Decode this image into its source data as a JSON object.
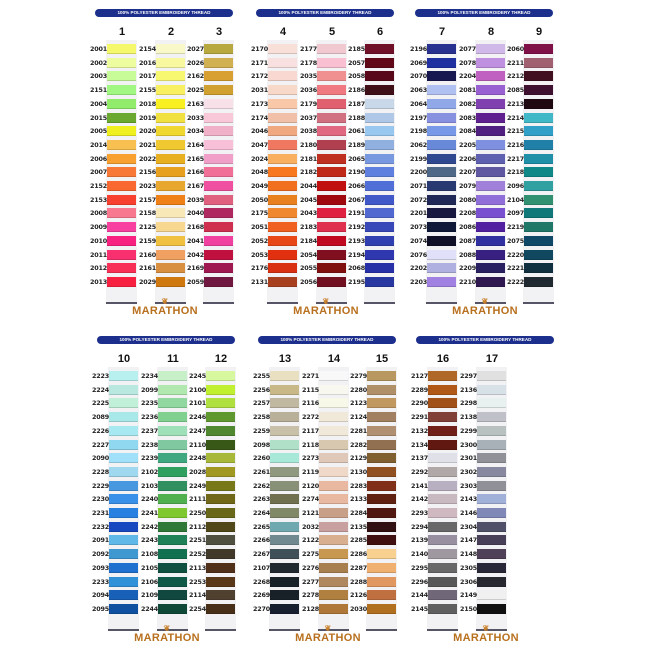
{
  "banner_text": "100% POLYESTER EMBROIDERY THREAD",
  "brand": "MARATHON",
  "cards": [
    {
      "columns": [
        {
          "number": "1",
          "codes": [
            "2001",
            "2002",
            "2003",
            "2151",
            "2004",
            "2015",
            "2005",
            "2014",
            "2006",
            "2007",
            "2152",
            "2153",
            "2008",
            "2009",
            "2010",
            "2011",
            "2012",
            "2013"
          ],
          "colors": [
            "#f4f86a",
            "#eefca0",
            "#c8fc98",
            "#a0f882",
            "#90ec6a",
            "#6aa830",
            "#f0f020",
            "#f8c050",
            "#f8a030",
            "#f87838",
            "#f86830",
            "#f84030",
            "#f87890",
            "#f840a0",
            "#f82080",
            "#f83070",
            "#f83058",
            "#f82040"
          ]
        },
        {
          "number": "2",
          "codes": [
            "2154",
            "2016",
            "2017",
            "2155",
            "2018",
            "2019",
            "2020",
            "2021",
            "2022",
            "2156",
            "2023",
            "2157",
            "2158",
            "2125",
            "2159",
            "2160",
            "2161",
            "2029"
          ],
          "colors": [
            "#f8f8c8",
            "#f8f8a0",
            "#f8f870",
            "#f8f060",
            "#f8f020",
            "#f0e040",
            "#f0d830",
            "#f0c830",
            "#e8b020",
            "#e8a020",
            "#e8a830",
            "#f08018",
            "#f8e8b8",
            "#f8d890",
            "#f0c040",
            "#f0a060",
            "#d89040",
            "#d07810"
          ]
        },
        {
          "number": "3",
          "codes": [
            "2027",
            "2026",
            "2162",
            "2025",
            "2163",
            "2033",
            "2034",
            "2164",
            "2165",
            "2166",
            "2167",
            "2039",
            "2040",
            "2168",
            "2041",
            "2042",
            "2169",
            "2059"
          ],
          "colors": [
            "#b8a840",
            "#d0b050",
            "#d8a030",
            "#d0a030",
            "#f8e0e8",
            "#f8c8d8",
            "#f0b0c8",
            "#f8c0d8",
            "#f0a0c8",
            "#f07098",
            "#f050a0",
            "#e06080",
            "#b02860",
            "#d03050",
            "#f040a0",
            "#c01040",
            "#a01850",
            "#701840"
          ]
        }
      ]
    },
    {
      "columns": [
        {
          "number": "4",
          "codes": [
            "2170",
            "2171",
            "2172",
            "2031",
            "2173",
            "2174",
            "2046",
            "2047",
            "2024",
            "2048",
            "2049",
            "2050",
            "2175",
            "2051",
            "2052",
            "2053",
            "2176",
            "2131"
          ],
          "colors": [
            "#f8e0d8",
            "#f8e0e0",
            "#f8d8d0",
            "#f8d8c8",
            "#f8c8a8",
            "#f0c0a8",
            "#f0a880",
            "#f07860",
            "#f8b060",
            "#f87820",
            "#f07020",
            "#e88020",
            "#f08830",
            "#f06020",
            "#e84818",
            "#e03010",
            "#d83010",
            "#a84020"
          ]
        },
        {
          "number": "5",
          "codes": [
            "2177",
            "2178",
            "2035",
            "2036",
            "2179",
            "2037",
            "2038",
            "2180",
            "2181",
            "2182",
            "2044",
            "2045",
            "2043",
            "2183",
            "2184",
            "2054",
            "2055",
            "2056"
          ],
          "colors": [
            "#f0c8d0",
            "#f8c0d0",
            "#f09090",
            "#f07880",
            "#e06070",
            "#d07080",
            "#e06880",
            "#b04050",
            "#c03020",
            "#c02818",
            "#c01010",
            "#a00810",
            "#e02040",
            "#e03050",
            "#c00820",
            "#801020",
            "#801010",
            "#701020"
          ]
        },
        {
          "number": "6",
          "codes": [
            "2185",
            "2057",
            "2058",
            "2186",
            "2187",
            "2188",
            "2061",
            "2189",
            "2065",
            "2190",
            "2066",
            "2067",
            "2191",
            "2192",
            "2193",
            "2194",
            "2068",
            "2195"
          ],
          "colors": [
            "#701028",
            "#600818",
            "#580818",
            "#401018",
            "#c8d8e8",
            "#b0c8e8",
            "#98c8f0",
            "#90b0e0",
            "#7898e0",
            "#6080e0",
            "#5070d8",
            "#4058c8",
            "#5068d0",
            "#3848b8",
            "#3040b0",
            "#3038b0",
            "#2830a8",
            "#2838a0"
          ]
        }
      ]
    },
    {
      "columns": [
        {
          "number": "7",
          "codes": [
            "2196",
            "2069",
            "2070",
            "2063",
            "2064",
            "2197",
            "2198",
            "2062",
            "2199",
            "2200",
            "2071",
            "2072",
            "2201",
            "2073",
            "2074",
            "2076",
            "2202",
            "2203"
          ],
          "colors": [
            "#283090",
            "#2030a0",
            "#181850",
            "#b0c0f0",
            "#90a8e8",
            "#8890e0",
            "#7898e8",
            "#6888d8",
            "#304890",
            "#506888",
            "#283870",
            "#202858",
            "#181840",
            "#101838",
            "#101028",
            "#e0e0f8",
            "#b0b0e0",
            "#a080e0"
          ]
        },
        {
          "number": "8",
          "codes": [
            "2077",
            "2078",
            "2204",
            "2081",
            "2082",
            "2083",
            "2084",
            "2205",
            "2206",
            "2207",
            "2079",
            "2080",
            "2208",
            "2086",
            "2087",
            "2088",
            "2209",
            "2210"
          ],
          "colors": [
            "#d0b8e8",
            "#c090e0",
            "#c060c0",
            "#9860d0",
            "#8040b0",
            "#602090",
            "#502080",
            "#8090e0",
            "#6060b0",
            "#6058a0",
            "#a080d8",
            "#9070d8",
            "#7850d0",
            "#5020a0",
            "#3030a0",
            "#382080",
            "#282060",
            "#301850"
          ]
        },
        {
          "number": "9",
          "codes": [
            "2060",
            "2211",
            "2212",
            "2085",
            "2213",
            "2214",
            "2215",
            "2216",
            "2217",
            "2218",
            "2096",
            "2104",
            "2097",
            "2219",
            "2075",
            "2220",
            "2221",
            "2222"
          ],
          "colors": [
            "#801048",
            "#a06070",
            "#401020",
            "#401030",
            "#200810",
            "#40b8c8",
            "#30a0c8",
            "#2080a8",
            "#2090a8",
            "#108888",
            "#30a0a0",
            "#309070",
            "#107878",
            "#207868",
            "#104868",
            "#104860",
            "#103040",
            "#202830"
          ]
        }
      ]
    },
    {
      "columns": [
        {
          "number": "10",
          "codes": [
            "2223",
            "2224",
            "2225",
            "2089",
            "2226",
            "2227",
            "2090",
            "2228",
            "2229",
            "2230",
            "2231",
            "2232",
            "2091",
            "2092",
            "2093",
            "2233",
            "2094",
            "2095"
          ],
          "colors": [
            "#b8f0f0",
            "#b8e8e0",
            "#c0f0d8",
            "#a8e8e8",
            "#a8e8f0",
            "#90d8f0",
            "#a0e0f8",
            "#a0d8f0",
            "#4898e0",
            "#3890e8",
            "#2880e0",
            "#1848c0",
            "#60b8e8",
            "#4098d0",
            "#2070d0",
            "#3090d8",
            "#1860b8",
            "#1050a0"
          ]
        },
        {
          "number": "11",
          "codes": [
            "2234",
            "2099",
            "2235",
            "2236",
            "2237",
            "2238",
            "2239",
            "2102",
            "2103",
            "2240",
            "2241",
            "2242",
            "2243",
            "2108",
            "2105",
            "2106",
            "2109",
            "2244"
          ],
          "colors": [
            "#c8f0c8",
            "#b0e8b0",
            "#90d8a0",
            "#80d090",
            "#a0e0b8",
            "#80c8a0",
            "#40a880",
            "#30a060",
            "#309060",
            "#50b050",
            "#80c830",
            "#307838",
            "#208058",
            "#107050",
            "#105040",
            "#105848",
            "#104840",
            "#104838"
          ]
        },
        {
          "number": "12",
          "codes": [
            "2245",
            "2100",
            "2101",
            "2246",
            "2247",
            "2110",
            "2248",
            "2028",
            "2249",
            "2111",
            "2250",
            "2112",
            "2251",
            "2252",
            "2113",
            "2253",
            "2114",
            "2254"
          ],
          "colors": [
            "#d8f8a0",
            "#c0f030",
            "#b0e040",
            "#609830",
            "#508830",
            "#385818",
            "#a8b838",
            "#a09820",
            "#787818",
            "#706818",
            "#686818",
            "#504818",
            "#505040",
            "#403828",
            "#503018",
            "#583818",
            "#504030",
            "#483018"
          ]
        }
      ]
    },
    {
      "columns": [
        {
          "number": "13",
          "codes": [
            "2255",
            "2256",
            "2257",
            "2258",
            "2259",
            "2098",
            "2260",
            "2261",
            "2262",
            "2263",
            "2264",
            "2265",
            "2266",
            "2267",
            "2107",
            "2268",
            "2269",
            "2270"
          ],
          "colors": [
            "#e8e0c0",
            "#c8b888",
            "#c0b8a0",
            "#b8b098",
            "#c8c0a8",
            "#b0e0c8",
            "#a8e8d8",
            "#909880",
            "#889078",
            "#707050",
            "#808868",
            "#70a8b0",
            "#708890",
            "#405058",
            "#202830",
            "#182028",
            "#182028",
            "#182030"
          ]
        },
        {
          "number": "14",
          "codes": [
            "2271",
            "2115",
            "2116",
            "2272",
            "2117",
            "2118",
            "2273",
            "2119",
            "2120",
            "2274",
            "2121",
            "2032",
            "2122",
            "2275",
            "2276",
            "2277",
            "2278",
            "2128"
          ],
          "colors": [
            "#f8f8f8",
            "#f8f8f0",
            "#f8f8e8",
            "#f0e8d8",
            "#f0e8d8",
            "#d8c8b0",
            "#e0c8b8",
            "#f0d8c8",
            "#e8b8a0",
            "#e8b8a0",
            "#c8a088",
            "#c8a0a0",
            "#d8b090",
            "#c89850",
            "#a88050",
            "#b08860",
            "#b08040",
            "#b07838"
          ]
        },
        {
          "number": "15",
          "codes": [
            "2279",
            "2280",
            "2123",
            "2124",
            "2281",
            "2282",
            "2129",
            "2130",
            "2283",
            "2133",
            "2284",
            "2135",
            "2285",
            "2286",
            "2287",
            "2288",
            "2126",
            "2030"
          ],
          "colors": [
            "#b89860",
            "#b09068",
            "#c09860",
            "#a08060",
            "#b09070",
            "#907050",
            "#806030",
            "#905020",
            "#803018",
            "#602010",
            "#501810",
            "#301010",
            "#401010",
            "#f8d090",
            "#f0b070",
            "#e09860",
            "#c07040",
            "#b07020"
          ]
        }
      ]
    },
    {
      "columns": [
        {
          "number": "16",
          "codes": [
            "2127",
            "2289",
            "2290",
            "2291",
            "2132",
            "2134",
            "2137",
            "2292",
            "2141",
            "2142",
            "2293",
            "2294",
            "2139",
            "2140",
            "2295",
            "2296",
            "2144",
            "2145"
          ],
          "colors": [
            "#b06828",
            "#b05818",
            "#a05018",
            "#804038",
            "#702018",
            "#601810",
            "#e0e0e8",
            "#b0a8a8",
            "#b8b0c0",
            "#c8b8c0",
            "#d0b8c0",
            "#686868",
            "#9890a0",
            "#a098a0",
            "#686868",
            "#585858",
            "#706878",
            "#606060"
          ]
        },
        {
          "number": "17",
          "codes": [
            "2297",
            "2136",
            "2298",
            "2138",
            "2299",
            "2300",
            "2301",
            "2302",
            "2303",
            "2143",
            "2146",
            "2304",
            "2147",
            "2148",
            "2305",
            "2306",
            "2149",
            "2150"
          ],
          "colors": [
            "#e0e0e0",
            "#d8e0e8",
            "#e8f0f0",
            "#c0c0c8",
            "#b8c0c0",
            "#a8b0b8",
            "#909098",
            "#8888a0",
            "#909098",
            "#a0b0d8",
            "#8088b8",
            "#505068",
            "#484058",
            "#504058",
            "#282838",
            "#282830",
            "#f0f0f0",
            "#101010"
          ]
        }
      ]
    }
  ]
}
